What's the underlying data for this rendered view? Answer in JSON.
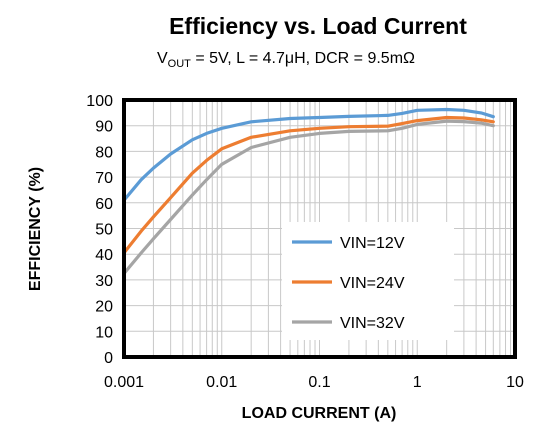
{
  "chart_data": {
    "type": "line",
    "title": "Efficiency vs. Load Current",
    "subtitle": {
      "prefix": "V",
      "sub": "OUT",
      "rest": " = 5V, L = 4.7μH, DCR = 9.5mΩ"
    },
    "xlabel": "LOAD CURRENT (A)",
    "ylabel": "EFFICIENCY (%)",
    "x_scale": "log",
    "xlim": [
      0.001,
      10
    ],
    "ylim": [
      0,
      100
    ],
    "x_ticks": [
      "0.001",
      "0.01",
      "0.1",
      "1",
      "10"
    ],
    "y_ticks": [
      "0",
      "10",
      "20",
      "30",
      "40",
      "50",
      "60",
      "70",
      "80",
      "90",
      "100"
    ],
    "grid": true,
    "legend_position": "center-right",
    "series": [
      {
        "name": "VIN=12V",
        "color": "#5b9bd5",
        "points": [
          [
            0.001,
            61
          ],
          [
            0.0015,
            69
          ],
          [
            0.002,
            73.5
          ],
          [
            0.003,
            79
          ],
          [
            0.005,
            84.5
          ],
          [
            0.007,
            87
          ],
          [
            0.01,
            89
          ],
          [
            0.02,
            91.5
          ],
          [
            0.05,
            92.8
          ],
          [
            0.1,
            93.2
          ],
          [
            0.2,
            93.6
          ],
          [
            0.5,
            94
          ],
          [
            0.7,
            94.8
          ],
          [
            1,
            96
          ],
          [
            2,
            96.3
          ],
          [
            3,
            96
          ],
          [
            4.5,
            95
          ],
          [
            6,
            93.5
          ]
        ]
      },
      {
        "name": "VIN=24V",
        "color": "#ed7d31",
        "points": [
          [
            0.001,
            40.5
          ],
          [
            0.0015,
            49
          ],
          [
            0.002,
            54.5
          ],
          [
            0.003,
            62
          ],
          [
            0.005,
            71.5
          ],
          [
            0.007,
            76.5
          ],
          [
            0.01,
            81
          ],
          [
            0.02,
            85.5
          ],
          [
            0.05,
            88
          ],
          [
            0.1,
            89
          ],
          [
            0.2,
            89.6
          ],
          [
            0.5,
            89.8
          ],
          [
            0.7,
            90.8
          ],
          [
            1,
            92
          ],
          [
            2,
            93.2
          ],
          [
            3,
            93
          ],
          [
            4.5,
            92.3
          ],
          [
            6,
            91.5
          ]
        ]
      },
      {
        "name": "VIN=32V",
        "color": "#a5a5a5",
        "points": [
          [
            0.001,
            32.5
          ],
          [
            0.0015,
            40.5
          ],
          [
            0.002,
            46
          ],
          [
            0.003,
            53.5
          ],
          [
            0.005,
            63
          ],
          [
            0.007,
            69
          ],
          [
            0.01,
            75
          ],
          [
            0.02,
            81.5
          ],
          [
            0.05,
            85.5
          ],
          [
            0.1,
            87
          ],
          [
            0.2,
            87.8
          ],
          [
            0.5,
            88
          ],
          [
            0.7,
            89
          ],
          [
            1,
            90.5
          ],
          [
            2,
            91.8
          ],
          [
            3,
            91.6
          ],
          [
            4.5,
            91
          ],
          [
            6,
            90
          ]
        ]
      }
    ]
  }
}
